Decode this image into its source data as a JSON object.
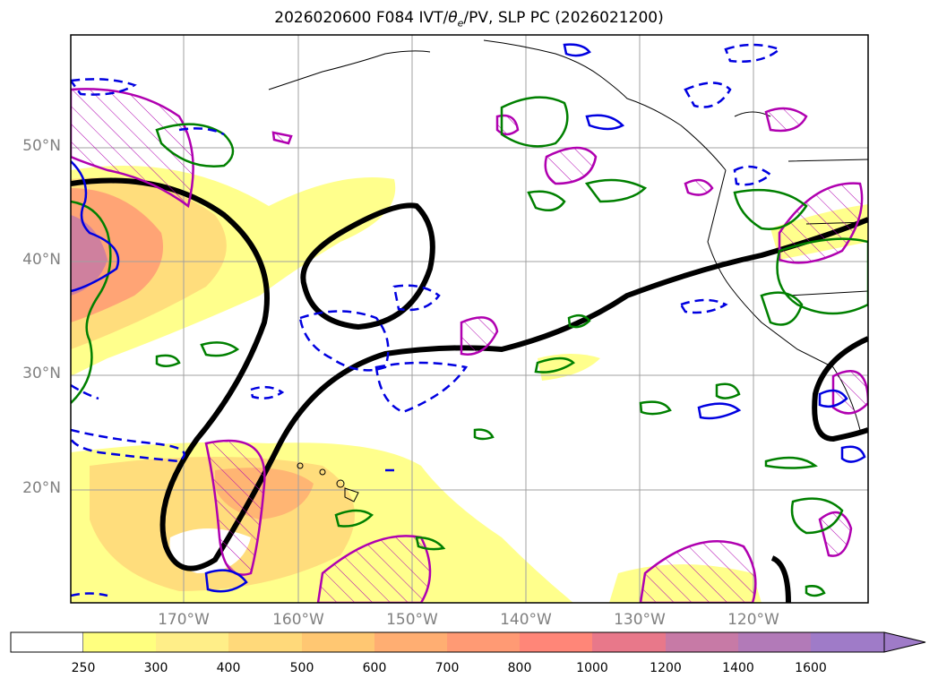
{
  "title": {
    "prefix": "2026020600 F084 IVT/",
    "theta": "θ",
    "theta_sub": "e",
    "suffix": "/PV, SLP PC (2026021200)"
  },
  "map": {
    "lat_labels": [
      "50°N",
      "40°N",
      "30°N",
      "20°N"
    ],
    "lon_labels": [
      "170°W",
      "160°W",
      "150°W",
      "140°W",
      "130°W",
      "120°W"
    ]
  },
  "colorbar": {
    "ticks": [
      "250",
      "300",
      "400",
      "500",
      "600",
      "700",
      "800",
      "1000",
      "1200",
      "1400",
      "1600"
    ],
    "colors": [
      "#ffffff",
      "#ffff7f",
      "#ffee88",
      "#ffd97a",
      "#ffc772",
      "#ffae72",
      "#ff9a74",
      "#ff8678",
      "#e8788a",
      "#c77aa6",
      "#b27ab8",
      "#9f7bc8"
    ]
  }
}
